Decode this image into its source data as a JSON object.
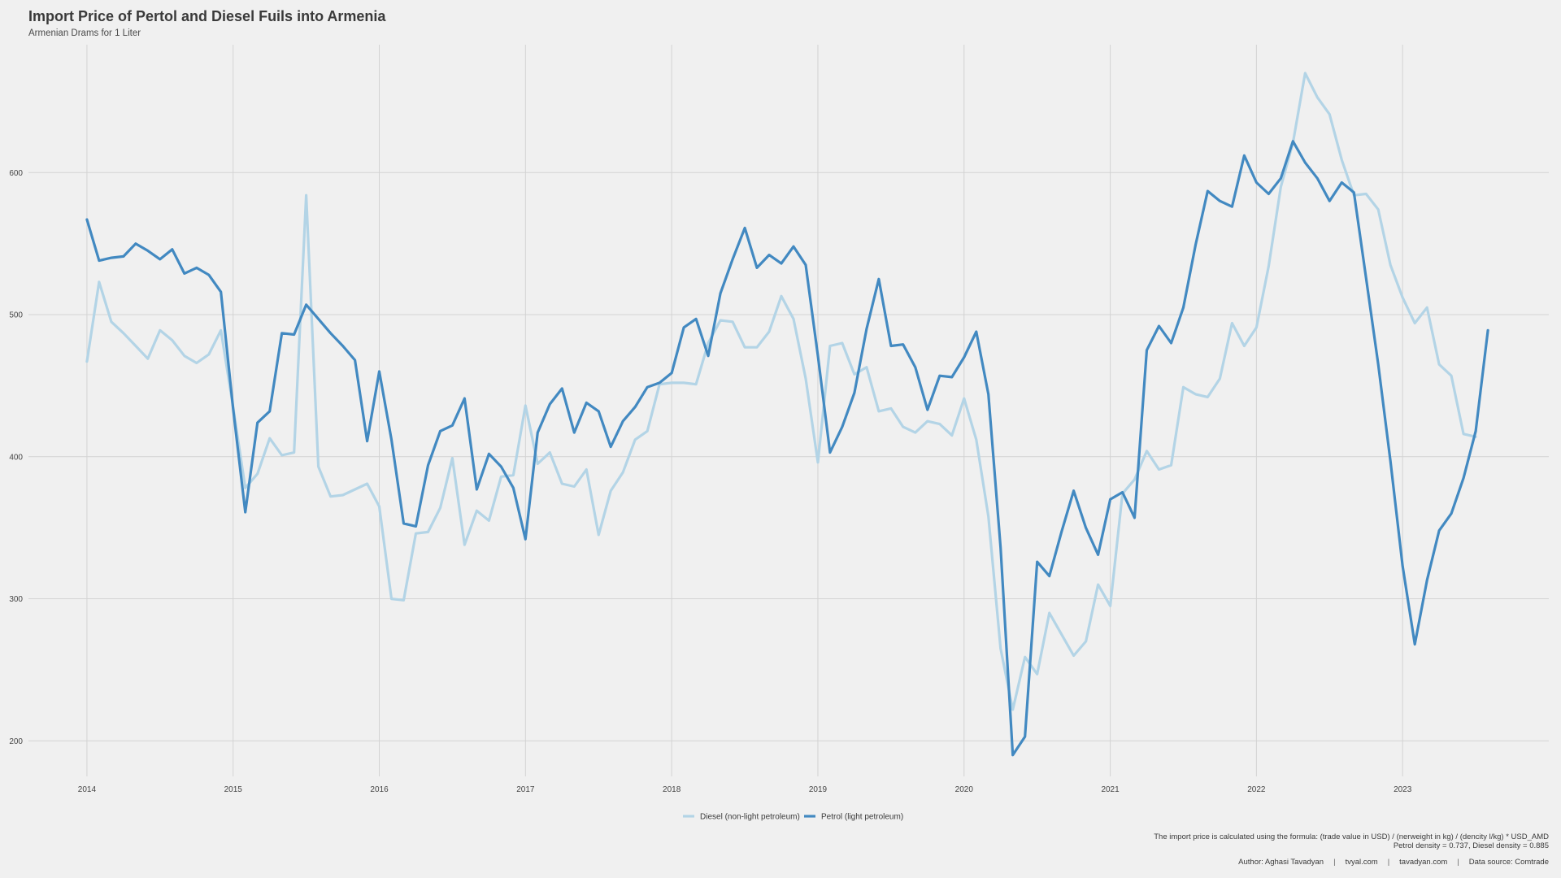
{
  "header": {
    "title": "Import Price of Pertol and Diesel Fuils into Armenia",
    "subtitle": "Armenian Drams for 1 Liter"
  },
  "caption": {
    "formula": "The import price is calculated using the formula: (trade value in USD) / (nerweight in kg) / (dencity l/kg) * USD_AMD",
    "densities": "Petrol density = 0.737, Diesel density = 0.885"
  },
  "credits": {
    "author": "Author: Aghasi Tavadyan",
    "site1": "tvyal.com",
    "site2": "tavadyan.com",
    "source": "Data source: Comtrade",
    "separator": "|"
  },
  "colors": {
    "diesel": "#b3d4e6",
    "petrol": "#4289c1",
    "grid": "#d3d3d3",
    "background": "#f0f0f0"
  },
  "chart_data": {
    "type": "line",
    "title": "Import Price of Pertol and Diesel Fuils into Armenia",
    "subtitle": "Armenian Drams for 1 Liter",
    "xlabel": "",
    "ylabel": "",
    "x_start": "2014-01",
    "x_frequency": "monthly",
    "xlim": [
      2013.6,
      2024.0
    ],
    "ylim": [
      175,
      690
    ],
    "x_ticks": [
      2014,
      2015,
      2016,
      2017,
      2018,
      2019,
      2020,
      2021,
      2022,
      2023
    ],
    "x_tick_labels": [
      "2014",
      "2015",
      "2016",
      "2017",
      "2018",
      "2019",
      "2020",
      "2021",
      "2022",
      "2023"
    ],
    "y_ticks": [
      200,
      300,
      400,
      500,
      600
    ],
    "y_tick_labels": [
      "200",
      "300",
      "400",
      "500",
      "600"
    ],
    "grid": true,
    "legend_position": "bottom",
    "series": [
      {
        "name": "Diesel (non-light petroleum)",
        "color": "#b3d4e6",
        "values": [
          467,
          523,
          495,
          487,
          478,
          469,
          489,
          482,
          471,
          466,
          472,
          489,
          435,
          378,
          388,
          413,
          401,
          403,
          584,
          393,
          372,
          373,
          377,
          381,
          365,
          300,
          299,
          346,
          347,
          364,
          399,
          338,
          362,
          355,
          386,
          387,
          436,
          395,
          403,
          381,
          379,
          391,
          345,
          376,
          389,
          412,
          418,
          451,
          452,
          452,
          451,
          480,
          496,
          495,
          477,
          477,
          488,
          513,
          497,
          455,
          396,
          478,
          480,
          458,
          463,
          432,
          434,
          421,
          417,
          425,
          423,
          415,
          441,
          412,
          358,
          265,
          222,
          259,
          247,
          290,
          275,
          260,
          270,
          310,
          295,
          374,
          384,
          404,
          391,
          394,
          449,
          444,
          442,
          455,
          494,
          478,
          491,
          534,
          590,
          621,
          670,
          653,
          641,
          609,
          584,
          585,
          574,
          535,
          512,
          494,
          505,
          465,
          457,
          416,
          414
        ]
      },
      {
        "name": "Petrol (light petroleum)",
        "color": "#4289c1",
        "values": [
          567,
          538,
          540,
          541,
          550,
          545,
          539,
          546,
          529,
          533,
          528,
          516,
          434,
          361,
          424,
          432,
          487,
          486,
          507,
          497,
          487,
          478,
          468,
          411,
          460,
          412,
          353,
          351,
          394,
          418,
          422,
          441,
          377,
          402,
          393,
          378,
          342,
          417,
          437,
          448,
          417,
          438,
          432,
          407,
          425,
          435,
          449,
          452,
          459,
          491,
          497,
          471,
          515,
          539,
          561,
          533,
          542,
          536,
          548,
          535,
          471,
          403,
          421,
          445,
          490,
          525,
          478,
          479,
          463,
          433,
          457,
          456,
          470,
          488,
          444,
          336,
          190,
          203,
          326,
          316,
          347,
          376,
          350,
          331,
          370,
          375,
          357,
          475,
          492,
          480,
          505,
          549,
          587,
          580,
          576,
          612,
          593,
          585,
          596,
          622,
          607,
          596,
          580,
          593,
          586,
          526,
          465,
          397,
          323,
          268,
          313,
          348,
          360,
          385,
          418,
          489
        ]
      }
    ]
  }
}
